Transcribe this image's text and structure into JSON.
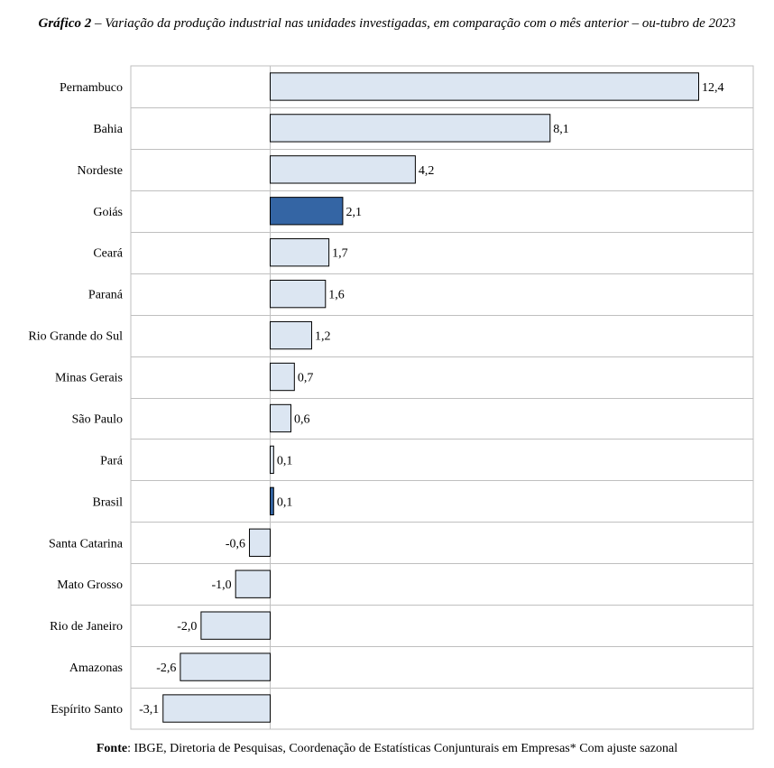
{
  "title": {
    "prefix": "Gráfico 2",
    "text": " – Variação da produção industrial nas unidades investigadas, em comparação com o mês anterior – ou-tubro de 2023"
  },
  "source": {
    "label": "Fonte",
    "text": ": IBGE, Diretoria de Pesquisas, Coordenação de Estatísticas Conjunturais em Empresas* Com ajuste sazonal"
  },
  "chart_data": {
    "type": "bar",
    "orientation": "horizontal",
    "categories": [
      "Pernambuco",
      "Bahia",
      "Nordeste",
      "Goiás",
      "Ceará",
      "Paraná",
      "Rio Grande do Sul",
      "Minas Gerais",
      "São Paulo",
      "Pará",
      "Brasil",
      "Santa Catarina",
      "Mato Grosso",
      "Rio de Janeiro",
      "Amazonas",
      "Espírito Santo"
    ],
    "values": [
      12.4,
      8.1,
      4.2,
      2.1,
      1.7,
      1.6,
      1.2,
      0.7,
      0.6,
      0.1,
      0.1,
      -0.6,
      -1.0,
      -2.0,
      -2.6,
      -3.1
    ],
    "data_labels": [
      "12,4",
      "8,1",
      "4,2",
      "2,1",
      "1,7",
      "1,6",
      "1,2",
      "0,7",
      "0,6",
      "0,1",
      "0,1",
      "-0,6",
      "-1,0",
      "-2,0",
      "-2,6",
      "-3,1"
    ],
    "highlighted": [
      "Goiás",
      "Brasil"
    ],
    "colors": {
      "default": "#dce6f2",
      "highlight": "#3465a4",
      "stroke": "#000000",
      "grid": "#bfbfbf"
    },
    "grid": true,
    "legend": "none"
  }
}
